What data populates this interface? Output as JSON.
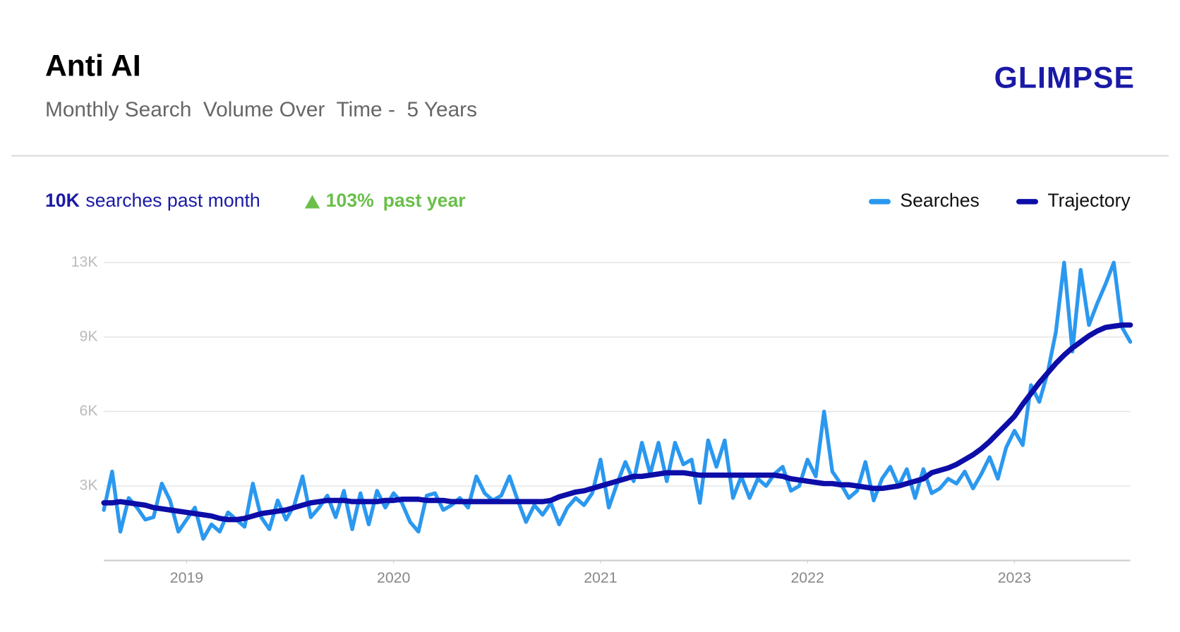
{
  "header": {
    "title": "Anti AI",
    "subtitle": "Monthly Search  Volume Over  Time -  5 Years",
    "logo": "GLIMPSE"
  },
  "stats": {
    "volume": "10K",
    "volume_label": "searches past month",
    "growth": "103%",
    "growth_label": "past year"
  },
  "chart_data": {
    "type": "line",
    "x": [
      2018.6,
      2018.64,
      2018.68,
      2018.72,
      2018.76,
      2018.8,
      2018.84,
      2018.88,
      2018.92,
      2018.96,
      2019,
      2019.04,
      2019.08,
      2019.12,
      2019.16,
      2019.2,
      2019.24,
      2019.28,
      2019.32,
      2019.36,
      2019.4,
      2019.44,
      2019.48,
      2019.52,
      2019.56,
      2019.6,
      2019.64,
      2019.68,
      2019.72,
      2019.76,
      2019.8,
      2019.84,
      2019.88,
      2019.92,
      2019.96,
      2020,
      2020.04,
      2020.08,
      2020.12,
      2020.16,
      2020.2,
      2020.24,
      2020.28,
      2020.32,
      2020.36,
      2020.4,
      2020.44,
      2020.48,
      2020.52,
      2020.56,
      2020.6,
      2020.64,
      2020.68,
      2020.72,
      2020.76,
      2020.8,
      2020.84,
      2020.88,
      2020.92,
      2020.96,
      2021,
      2021.04,
      2021.08,
      2021.12,
      2021.16,
      2021.2,
      2021.24,
      2021.28,
      2021.32,
      2021.36,
      2021.4,
      2021.44,
      2021.48,
      2021.52,
      2021.56,
      2021.6,
      2021.64,
      2021.68,
      2021.72,
      2021.76,
      2021.8,
      2021.84,
      2021.88,
      2021.92,
      2021.96,
      2022,
      2022.04,
      2022.08,
      2022.12,
      2022.16,
      2022.2,
      2022.24,
      2022.28,
      2022.32,
      2022.36,
      2022.4,
      2022.44,
      2022.48,
      2022.52,
      2022.56,
      2022.6,
      2022.64,
      2022.68,
      2022.72,
      2022.76,
      2022.8,
      2022.84,
      2022.88,
      2022.92,
      2022.96,
      2023,
      2023.04,
      2023.08,
      2023.12,
      2023.16,
      2023.2,
      2023.24,
      2023.28,
      2023.32,
      2023.36,
      2023.4,
      2023.44,
      2023.48,
      2023.52,
      2023.56
    ],
    "series": [
      {
        "name": "Searches",
        "color": "#2b98ef",
        "width": 5,
        "values": [
          2200,
          3800,
          1300,
          2700,
          2300,
          1800,
          1900,
          3300,
          2600,
          1300,
          1800,
          2300,
          1000,
          1600,
          1300,
          2100,
          1800,
          1500,
          3300,
          1900,
          1400,
          2600,
          1800,
          2400,
          3600,
          1900,
          2300,
          2800,
          1900,
          3000,
          1400,
          2900,
          1600,
          3000,
          2300,
          2900,
          2500,
          1700,
          1300,
          2800,
          2900,
          2200,
          2400,
          2700,
          2300,
          3600,
          2900,
          2600,
          2800,
          3600,
          2600,
          1700,
          2400,
          2000,
          2500,
          1600,
          2300,
          2700,
          2400,
          2900,
          4300,
          2300,
          3300,
          4200,
          3400,
          5000,
          3700,
          5000,
          3400,
          5000,
          4100,
          4300,
          2500,
          5100,
          4000,
          5100,
          2700,
          3600,
          2700,
          3500,
          3200,
          3700,
          4000,
          3000,
          3200,
          4300,
          3600,
          6300,
          3800,
          3300,
          2700,
          3000,
          4200,
          2600,
          3500,
          4000,
          3200,
          3900,
          2700,
          3900,
          2900,
          3100,
          3500,
          3300,
          3800,
          3100,
          3700,
          4400,
          3500,
          4800,
          5500,
          4900,
          7400,
          6700,
          7900,
          9600,
          12500,
          8800,
          12200,
          9900,
          10800,
          11600,
          12500,
          9800,
          9200
        ]
      },
      {
        "name": "Trajectory",
        "color": "#0d0da8",
        "width": 7,
        "values": [
          2500,
          2500,
          2550,
          2500,
          2450,
          2400,
          2300,
          2250,
          2200,
          2150,
          2100,
          2050,
          2000,
          1950,
          1850,
          1800,
          1800,
          1850,
          1950,
          2050,
          2100,
          2150,
          2200,
          2300,
          2400,
          2500,
          2550,
          2600,
          2600,
          2600,
          2550,
          2550,
          2550,
          2550,
          2600,
          2600,
          2650,
          2650,
          2650,
          2600,
          2600,
          2600,
          2550,
          2550,
          2550,
          2550,
          2550,
          2550,
          2550,
          2550,
          2550,
          2550,
          2550,
          2550,
          2600,
          2750,
          2850,
          2950,
          3000,
          3100,
          3200,
          3300,
          3400,
          3500,
          3600,
          3600,
          3650,
          3700,
          3750,
          3750,
          3750,
          3700,
          3650,
          3650,
          3650,
          3650,
          3650,
          3650,
          3650,
          3650,
          3650,
          3650,
          3600,
          3500,
          3450,
          3400,
          3350,
          3300,
          3300,
          3250,
          3250,
          3200,
          3150,
          3100,
          3100,
          3150,
          3200,
          3300,
          3400,
          3500,
          3750,
          3850,
          3950,
          4100,
          4300,
          4500,
          4750,
          5050,
          5400,
          5750,
          6100,
          6600,
          7050,
          7500,
          7900,
          8300,
          8650,
          8950,
          9200,
          9450,
          9650,
          9800,
          9850,
          9900,
          9900
        ]
      }
    ],
    "xlim": [
      2018.6,
      2023.56
    ],
    "xticks": [
      2019,
      2020,
      2021,
      2022,
      2023
    ],
    "ylim": [
      100,
      12500
    ],
    "yticks": [
      {
        "value": 3200,
        "label": "3K"
      },
      {
        "value": 6300,
        "label": "6K"
      },
      {
        "value": 9400,
        "label": "9K"
      },
      {
        "value": 12500,
        "label": "13K"
      }
    ],
    "grid": true,
    "legend": "top-right"
  }
}
